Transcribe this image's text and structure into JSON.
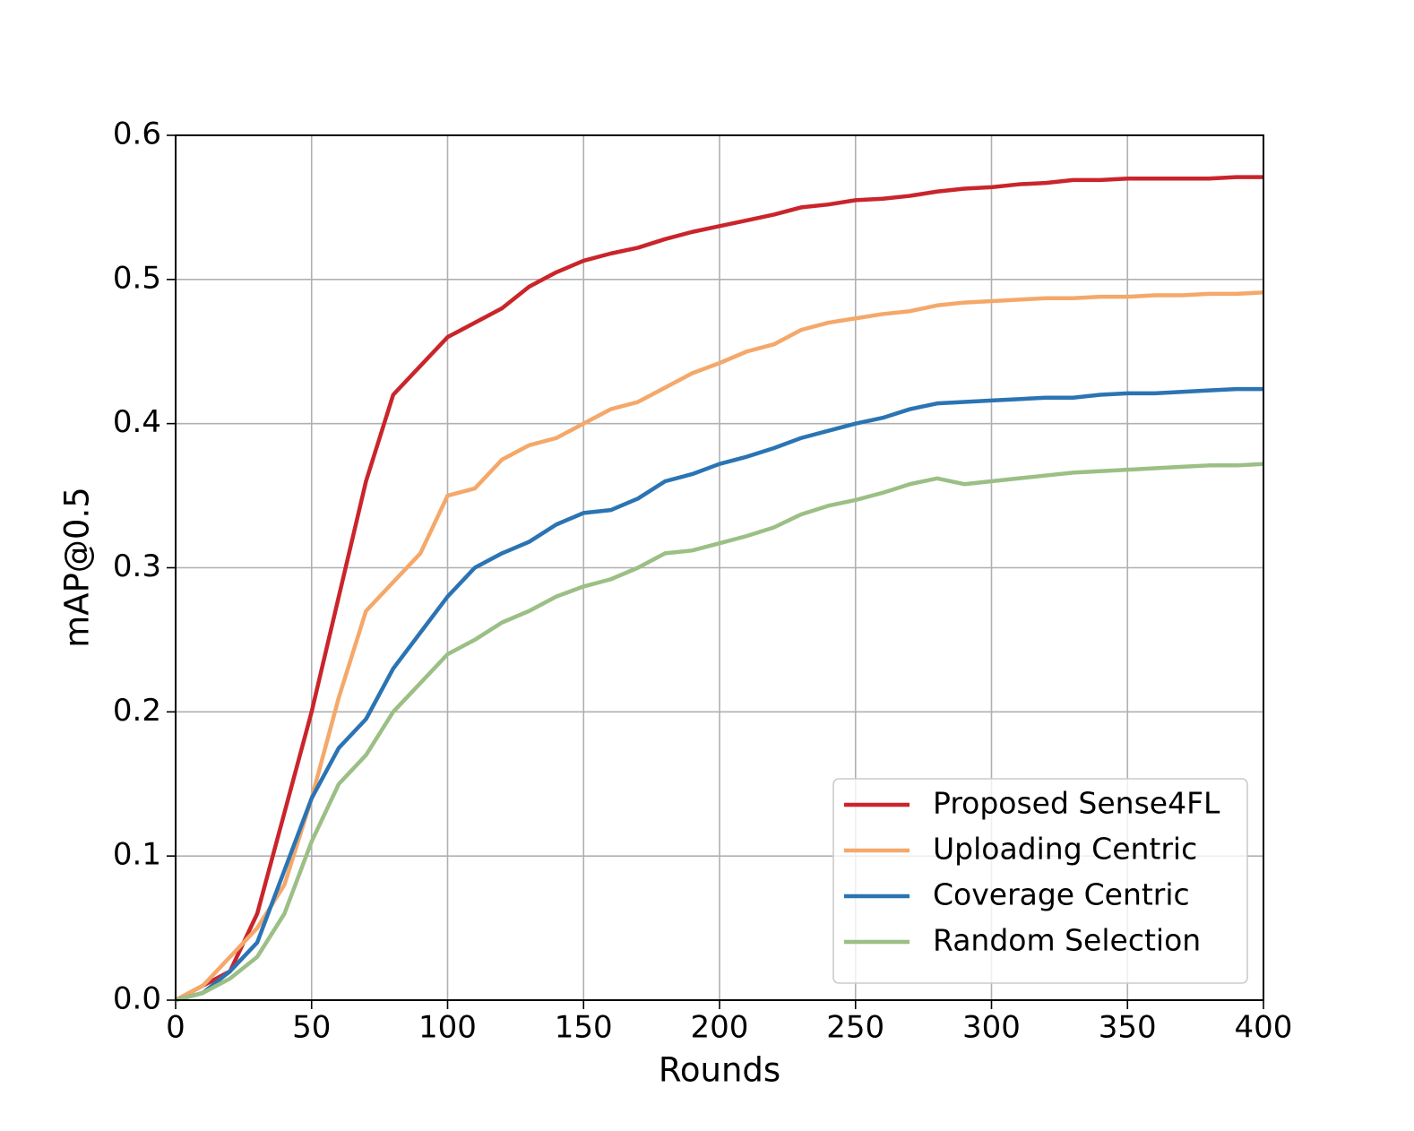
{
  "chart_data": {
    "type": "line",
    "xlabel": "Rounds",
    "ylabel": "mAP@0.5",
    "x": [
      0,
      10,
      20,
      30,
      40,
      50,
      60,
      70,
      80,
      90,
      100,
      110,
      120,
      130,
      140,
      150,
      160,
      170,
      180,
      190,
      200,
      210,
      220,
      230,
      240,
      250,
      260,
      270,
      280,
      290,
      300,
      310,
      320,
      330,
      340,
      350,
      360,
      370,
      380,
      390,
      400
    ],
    "series": [
      {
        "name": "Proposed Sense4FL",
        "color": "#c9252b",
        "values": [
          0,
          0.01,
          0.02,
          0.06,
          0.13,
          0.2,
          0.28,
          0.36,
          0.42,
          0.44,
          0.46,
          0.47,
          0.48,
          0.495,
          0.505,
          0.513,
          0.518,
          0.522,
          0.528,
          0.533,
          0.537,
          0.541,
          0.545,
          0.55,
          0.552,
          0.555,
          0.556,
          0.558,
          0.561,
          0.563,
          0.564,
          0.566,
          0.567,
          0.569,
          0.569,
          0.57,
          0.57,
          0.57,
          0.57,
          0.571,
          0.571
        ]
      },
      {
        "name": "Uploading Centric",
        "color": "#f4a86a",
        "values": [
          0,
          0.01,
          0.03,
          0.05,
          0.08,
          0.14,
          0.21,
          0.27,
          0.29,
          0.31,
          0.35,
          0.355,
          0.375,
          0.385,
          0.39,
          0.4,
          0.41,
          0.415,
          0.425,
          0.435,
          0.442,
          0.45,
          0.455,
          0.465,
          0.47,
          0.473,
          0.476,
          0.478,
          0.482,
          0.484,
          0.485,
          0.486,
          0.487,
          0.487,
          0.488,
          0.488,
          0.489,
          0.489,
          0.49,
          0.49,
          0.491
        ]
      },
      {
        "name": "Coverage Centric",
        "color": "#2b74b3",
        "values": [
          0,
          0.005,
          0.02,
          0.04,
          0.09,
          0.14,
          0.175,
          0.195,
          0.23,
          0.255,
          0.28,
          0.3,
          0.31,
          0.318,
          0.33,
          0.338,
          0.34,
          0.348,
          0.36,
          0.365,
          0.372,
          0.377,
          0.383,
          0.39,
          0.395,
          0.4,
          0.404,
          0.41,
          0.414,
          0.415,
          0.416,
          0.417,
          0.418,
          0.418,
          0.42,
          0.421,
          0.421,
          0.422,
          0.423,
          0.424,
          0.424
        ]
      },
      {
        "name": "Random Selection",
        "color": "#9bbf85",
        "values": [
          0,
          0.005,
          0.015,
          0.03,
          0.06,
          0.11,
          0.15,
          0.17,
          0.2,
          0.22,
          0.24,
          0.25,
          0.262,
          0.27,
          0.28,
          0.287,
          0.292,
          0.3,
          0.31,
          0.312,
          0.317,
          0.322,
          0.328,
          0.337,
          0.343,
          0.347,
          0.352,
          0.358,
          0.362,
          0.358,
          0.36,
          0.362,
          0.364,
          0.366,
          0.367,
          0.368,
          0.369,
          0.37,
          0.371,
          0.371,
          0.372
        ]
      }
    ],
    "xlim": [
      0,
      400
    ],
    "ylim": [
      0,
      0.6
    ],
    "xticks": [
      0,
      50,
      100,
      150,
      200,
      250,
      300,
      350,
      400
    ],
    "yticks": [
      {
        "value": 0,
        "label": "0.0"
      },
      0.1,
      0.2,
      0.3,
      0.4,
      0.5,
      0.6
    ],
    "grid": true,
    "legend": "lower right"
  }
}
